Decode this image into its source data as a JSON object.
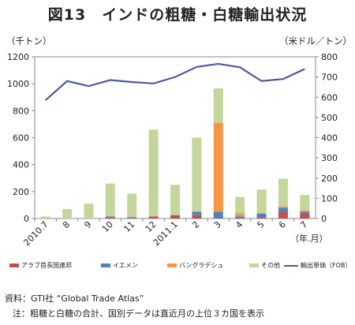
{
  "chart_data": {
    "type": "bar",
    "title": "図13　インドの粗糖・白糖輸出状況",
    "left_unit": "（千トン）",
    "right_unit": "（米ドル／トン）",
    "xunit": "（年.月）",
    "categories": [
      "2010.7",
      "8",
      "9",
      "10",
      "11",
      "12",
      "2011.1",
      "2",
      "3",
      "4",
      "5",
      "6",
      "7"
    ],
    "ylim": [
      0,
      1200
    ],
    "yticks": [
      0,
      200,
      400,
      600,
      800,
      1000,
      1200
    ],
    "y2lim": [
      0,
      800
    ],
    "y2ticks": [
      0,
      100,
      200,
      300,
      400,
      500,
      600,
      700,
      800
    ],
    "grid": false,
    "legend_position": "bottom",
    "series": [
      {
        "name": "アラブ首長国連邦",
        "color": "#c0504d",
        "values": [
          0,
          0,
          0,
          10,
          5,
          15,
          25,
          25,
          0,
          0,
          10,
          50,
          35
        ]
      },
      {
        "name": "イエメン",
        "color": "#4f81bd",
        "values": [
          0,
          0,
          0,
          5,
          5,
          0,
          0,
          25,
          50,
          15,
          25,
          30,
          15
        ]
      },
      {
        "name": "バングラデシュ",
        "color": "#f79646",
        "values": [
          0,
          0,
          0,
          0,
          0,
          0,
          0,
          0,
          660,
          25,
          5,
          10,
          10
        ]
      },
      {
        "name": "その他",
        "color": "#c3d69b",
        "values": [
          15,
          70,
          110,
          245,
          175,
          645,
          225,
          550,
          255,
          120,
          175,
          205,
          115
        ]
      }
    ],
    "line_series": {
      "name": "輸出単価（FOB）",
      "color": "#4f5a9a",
      "axis": "right",
      "values": [
        585,
        680,
        655,
        685,
        675,
        668,
        700,
        750,
        765,
        748,
        680,
        690,
        740
      ]
    }
  },
  "footer": {
    "source": "資料：GTI社 “Global Trade Atlas”",
    "note": "注：粗糖と白糖の合計、国別データは直近月の上位３カ国を表示"
  }
}
